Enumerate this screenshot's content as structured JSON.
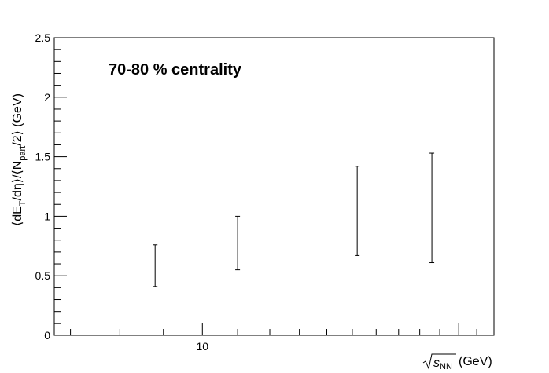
{
  "chart_data": {
    "type": "errorbar",
    "annotation": "70-80 % centrality",
    "ylabel": {
      "main": "⟨dE",
      "sub_T": "T",
      "mid": "/dη⟩/⟨N",
      "sub_part": "part",
      "end": "/2⟩ (GeV)"
    },
    "xlabel": {
      "sqrt_s": "s",
      "sub_NN": "NN",
      "unit": "(GeV)"
    },
    "x_scale": "log",
    "xlim": [
      6.7,
      22.0
    ],
    "ylim": [
      0,
      2.5
    ],
    "y_ticks": [
      {
        "value": 0,
        "label": "0"
      },
      {
        "value": 0.5,
        "label": "0.5"
      },
      {
        "value": 1,
        "label": "1"
      },
      {
        "value": 1.5,
        "label": "1.5"
      },
      {
        "value": 2,
        "label": "2"
      },
      {
        "value": 2.5,
        "label": "2.5"
      }
    ],
    "x_tick_labels": [
      {
        "value": 10,
        "label": "10"
      }
    ],
    "points": [
      {
        "x": 8.8,
        "y_low": 0.41,
        "y_high": 0.76
      },
      {
        "x": 11.0,
        "y_low": 0.55,
        "y_high": 1.0
      },
      {
        "x": 15.2,
        "y_low": 0.67,
        "y_high": 1.42
      },
      {
        "x": 18.6,
        "y_low": 0.61,
        "y_high": 1.53
      }
    ]
  }
}
